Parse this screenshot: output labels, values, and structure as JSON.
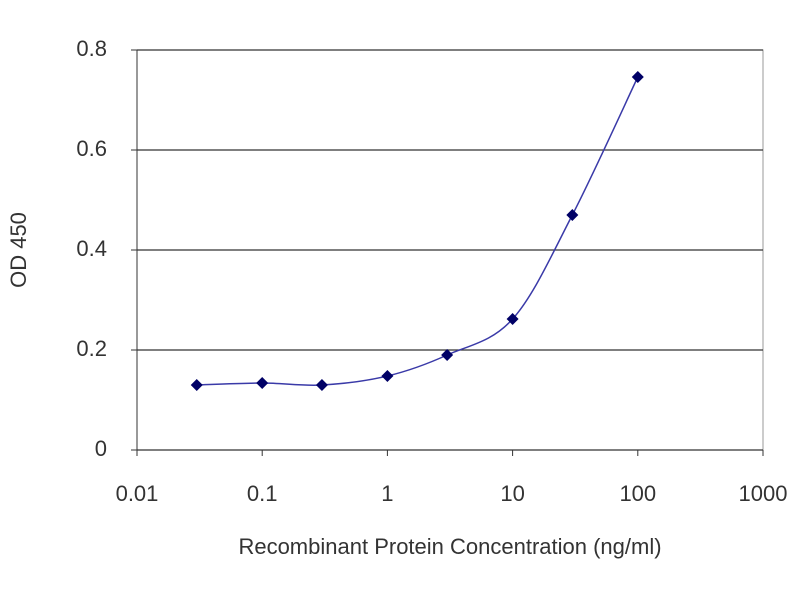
{
  "chart_data": {
    "type": "line",
    "x_label": "Recombinant Protein Concentration (ng/ml)",
    "y_label": "OD 450",
    "x": [
      0.03,
      0.1,
      0.3,
      1,
      3,
      10,
      30,
      100
    ],
    "values": [
      0.13,
      0.134,
      0.13,
      0.148,
      0.19,
      0.262,
      0.47,
      0.746
    ],
    "color": "#3a3aa8",
    "marker_color": "#000066",
    "xscale": "log",
    "smooth": true,
    "xlim": [
      0.01,
      1000
    ],
    "xticks": [
      0.01,
      0.1,
      1,
      10,
      100,
      1000
    ],
    "ylim": [
      0,
      0.8
    ],
    "yticks": [
      0,
      0.2,
      0.4,
      0.6,
      0.8
    ],
    "grid": true
  }
}
